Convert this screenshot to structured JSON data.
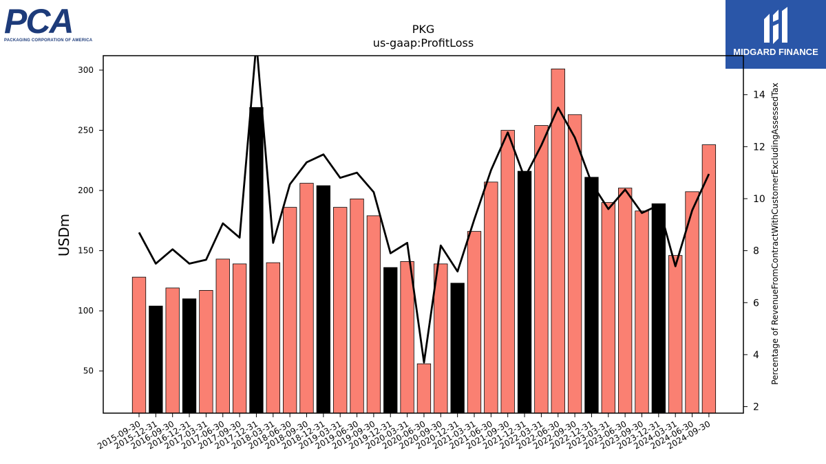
{
  "branding": {
    "left_logo_text": "PCA",
    "left_logo_subtext": "PACKAGING CORPORATION OF AMERICA",
    "right_logo_text": "MIDGARD FINANCE"
  },
  "colors": {
    "bar_default": "#fa8072",
    "bar_highlight": "#000000",
    "line": "#000000"
  },
  "chart_data": {
    "type": "bar",
    "title": "PKG",
    "subtitle": "us-gaap:ProfitLoss",
    "ylabel": "USDm",
    "y2label": "Percentage of RevenueFromContractWithCustomerExcludingAssessedTax",
    "ylim": [
      15,
      312
    ],
    "y2lim": [
      1.75,
      15.5
    ],
    "yticks": [
      50,
      100,
      150,
      200,
      250,
      300
    ],
    "y2ticks": [
      2,
      4,
      6,
      8,
      10,
      12,
      14
    ],
    "grid": false,
    "categories": [
      "2015-09-30",
      "2015-12-31",
      "2016-09-30",
      "2016-12-31",
      "2017-03-31",
      "2017-06-30",
      "2017-09-30",
      "2017-12-31",
      "2018-03-31",
      "2018-06-30",
      "2018-09-30",
      "2018-12-31",
      "2019-03-31",
      "2019-06-30",
      "2019-09-30",
      "2019-12-31",
      "2020-03-31",
      "2020-06-30",
      "2020-09-30",
      "2020-12-31",
      "2021-03-31",
      "2021-06-30",
      "2021-09-30",
      "2021-12-31",
      "2022-03-31",
      "2022-06-30",
      "2022-09-30",
      "2022-12-31",
      "2023-03-31",
      "2023-06-30",
      "2023-09-30",
      "2023-12-31",
      "2024-03-31",
      "2024-06-30",
      "2024-09-30"
    ],
    "series": [
      {
        "kind": "bar",
        "values": [
          128,
          104,
          119,
          110,
          117,
          143,
          139,
          269,
          140,
          186,
          206,
          204,
          186,
          193,
          179,
          136,
          141,
          56,
          139,
          123,
          166,
          207,
          250,
          216,
          254,
          301,
          263,
          211,
          190,
          202,
          183,
          189,
          146,
          199,
          238
        ],
        "highlight": [
          false,
          true,
          false,
          true,
          false,
          false,
          false,
          true,
          false,
          false,
          false,
          true,
          false,
          false,
          false,
          true,
          false,
          false,
          false,
          true,
          false,
          false,
          false,
          true,
          false,
          false,
          false,
          true,
          false,
          false,
          false,
          true,
          false,
          false,
          false
        ]
      },
      {
        "kind": "line",
        "axis": "right",
        "values": [
          8.7,
          7.5,
          8.05,
          7.5,
          7.65,
          9.05,
          8.5,
          16.0,
          8.3,
          10.55,
          11.4,
          11.7,
          10.8,
          11.0,
          10.25,
          7.9,
          8.3,
          3.7,
          8.2,
          7.2,
          9.2,
          11.1,
          12.55,
          10.8,
          12.05,
          13.5,
          12.35,
          10.6,
          9.6,
          10.35,
          9.45,
          9.75,
          7.4,
          9.55,
          10.95
        ]
      }
    ]
  }
}
